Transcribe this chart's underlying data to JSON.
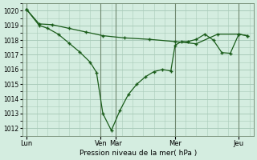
{
  "background_color": "#d4ede0",
  "grid_color": "#aacbba",
  "line_color": "#1a5c1a",
  "marker_color": "#1a5c1a",
  "xlabel": "Pression niveau de la mer( hPa )",
  "ylim": [
    1011.5,
    1020.5
  ],
  "yticks": [
    1012,
    1013,
    1014,
    1015,
    1016,
    1017,
    1018,
    1019,
    1020
  ],
  "xtick_labels": [
    "Lun",
    "Ven",
    "Mar",
    "Mer",
    "Jeu"
  ],
  "xtick_positions": [
    0,
    35,
    42,
    70,
    100
  ],
  "xmin": -2,
  "xmax": 107,
  "line1_x": [
    0,
    6,
    10,
    15,
    20,
    25,
    30,
    33,
    36,
    40,
    44,
    48,
    52,
    56,
    60,
    64,
    68,
    70,
    73,
    76,
    80,
    84,
    88,
    92,
    96,
    100,
    104
  ],
  "line1_y": [
    1020.1,
    1019.0,
    1018.8,
    1018.4,
    1017.8,
    1017.2,
    1016.5,
    1015.8,
    1013.0,
    1011.85,
    1013.2,
    1014.3,
    1015.0,
    1015.5,
    1015.85,
    1016.0,
    1015.9,
    1017.65,
    1017.9,
    1017.9,
    1018.05,
    1018.4,
    1018.0,
    1017.15,
    1017.1,
    1018.4,
    1018.3
  ],
  "line2_x": [
    0,
    6,
    12,
    20,
    28,
    36,
    46,
    58,
    70,
    80,
    90,
    100,
    104
  ],
  "line2_y": [
    1020.1,
    1019.1,
    1019.05,
    1018.8,
    1018.55,
    1018.3,
    1018.15,
    1018.05,
    1017.9,
    1017.75,
    1018.4,
    1018.4,
    1018.3
  ]
}
